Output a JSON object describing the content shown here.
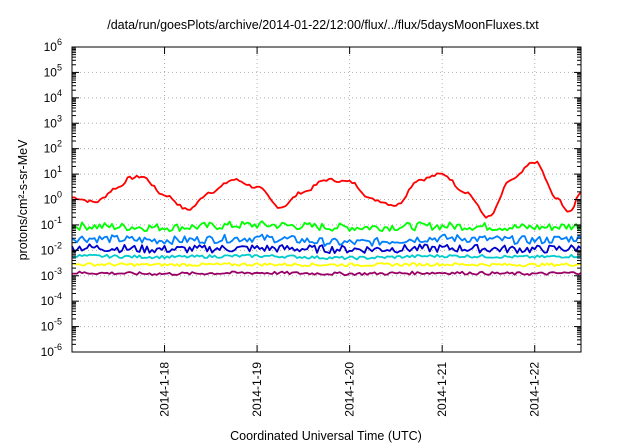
{
  "chart_data": {
    "type": "line",
    "title": "/data/run/goesPlots/archive/2014-01-22/12:00/flux/../flux/5daysMoonFluxes.txt",
    "xlabel": "Coordinated Universal Time (UTC)",
    "ylabel": "protons/cm²-s-sr-MeV",
    "y_scale": "log",
    "ylim": [
      1e-06,
      1000000.0
    ],
    "xlim": [
      "2014-01-17T00:00",
      "2014-01-22T12:00"
    ],
    "x_ticks": [
      "2014-01-18",
      "2014-01-19",
      "2014-01-20",
      "2014-01-21",
      "2014-01-22"
    ],
    "x_tick_labels": [
      "2014-1-18",
      "2014-1-19",
      "2014-1-20",
      "2014-1-21",
      "2014-1-22"
    ],
    "y_ticks": [
      {
        "base": "10",
        "exp": "-6"
      },
      {
        "base": "10",
        "exp": "-5"
      },
      {
        "base": "10",
        "exp": "-4"
      },
      {
        "base": "10",
        "exp": "-3"
      },
      {
        "base": "10",
        "exp": "-2"
      },
      {
        "base": "10",
        "exp": "-1"
      },
      {
        "base": "10",
        "exp": "0"
      },
      {
        "base": "10",
        "exp": "1"
      },
      {
        "base": "10",
        "exp": "2"
      },
      {
        "base": "10",
        "exp": "3"
      },
      {
        "base": "10",
        "exp": "4"
      },
      {
        "base": "10",
        "exp": "5"
      },
      {
        "base": "10",
        "exp": "6"
      }
    ],
    "grid": true,
    "series": [
      {
        "color": "#ff0000",
        "x": [
          "2014-01-17T00:00",
          "2014-01-17T06:00",
          "2014-01-17T12:00",
          "2014-01-17T15:00",
          "2014-01-17T18:00",
          "2014-01-18T00:00",
          "2014-01-18T06:00",
          "2014-01-18T12:00",
          "2014-01-18T18:00",
          "2014-01-19T00:00",
          "2014-01-19T06:00",
          "2014-01-19T12:00",
          "2014-01-19T18:00",
          "2014-01-20T00:00",
          "2014-01-20T06:00",
          "2014-01-20T12:00",
          "2014-01-20T18:00",
          "2014-01-21T00:00",
          "2014-01-21T06:00",
          "2014-01-21T12:00",
          "2014-01-21T18:00",
          "2014-01-22T00:00",
          "2014-01-22T06:00",
          "2014-01-22T09:00",
          "2014-01-22T12:00"
        ],
        "values": [
          1.2,
          0.8,
          3,
          7,
          8,
          1.5,
          0.4,
          2,
          6,
          3,
          0.5,
          2,
          6,
          5,
          1,
          0.6,
          6,
          10,
          2,
          0.2,
          6,
          30,
          1,
          0.3,
          2
        ]
      },
      {
        "color": "#00ff00",
        "x": [
          "2014-01-17T00:00",
          "2014-01-18T00:00",
          "2014-01-19T00:00",
          "2014-01-20T00:00",
          "2014-01-21T00:00",
          "2014-01-22T00:00",
          "2014-01-22T12:00"
        ],
        "values": [
          0.09,
          0.08,
          0.1,
          0.08,
          0.09,
          0.08,
          0.09
        ]
      },
      {
        "color": "#0080ff",
        "x": [
          "2014-01-17T00:00",
          "2014-01-18T00:00",
          "2014-01-19T00:00",
          "2014-01-20T00:00",
          "2014-01-21T00:00",
          "2014-01-22T00:00",
          "2014-01-22T12:00"
        ],
        "values": [
          0.03,
          0.025,
          0.03,
          0.02,
          0.03,
          0.025,
          0.03
        ]
      },
      {
        "color": "#0000cc",
        "x": [
          "2014-01-17T00:00",
          "2014-01-18T00:00",
          "2014-01-19T00:00",
          "2014-01-20T00:00",
          "2014-01-21T00:00",
          "2014-01-22T00:00",
          "2014-01-22T12:00"
        ],
        "values": [
          0.013,
          0.011,
          0.012,
          0.011,
          0.012,
          0.011,
          0.012
        ]
      },
      {
        "color": "#00cccc",
        "x": [
          "2014-01-17T00:00",
          "2014-01-18T00:00",
          "2014-01-19T00:00",
          "2014-01-20T00:00",
          "2014-01-21T00:00",
          "2014-01-22T00:00",
          "2014-01-22T12:00"
        ],
        "values": [
          0.006,
          0.0055,
          0.006,
          0.005,
          0.006,
          0.0055,
          0.006
        ]
      },
      {
        "color": "#ffff00",
        "x": [
          "2014-01-17T00:00",
          "2014-01-18T00:00",
          "2014-01-19T00:00",
          "2014-01-20T00:00",
          "2014-01-21T00:00",
          "2014-01-22T00:00",
          "2014-01-22T12:00"
        ],
        "values": [
          0.0028,
          0.0027,
          0.0028,
          0.0027,
          0.0028,
          0.0027,
          0.0028
        ]
      },
      {
        "color": "#990066",
        "x": [
          "2014-01-17T00:00",
          "2014-01-18T00:00",
          "2014-01-19T00:00",
          "2014-01-20T00:00",
          "2014-01-21T00:00",
          "2014-01-22T00:00",
          "2014-01-22T12:00"
        ],
        "values": [
          0.0013,
          0.0012,
          0.0013,
          0.0012,
          0.0013,
          0.0012,
          0.0013
        ]
      }
    ]
  }
}
